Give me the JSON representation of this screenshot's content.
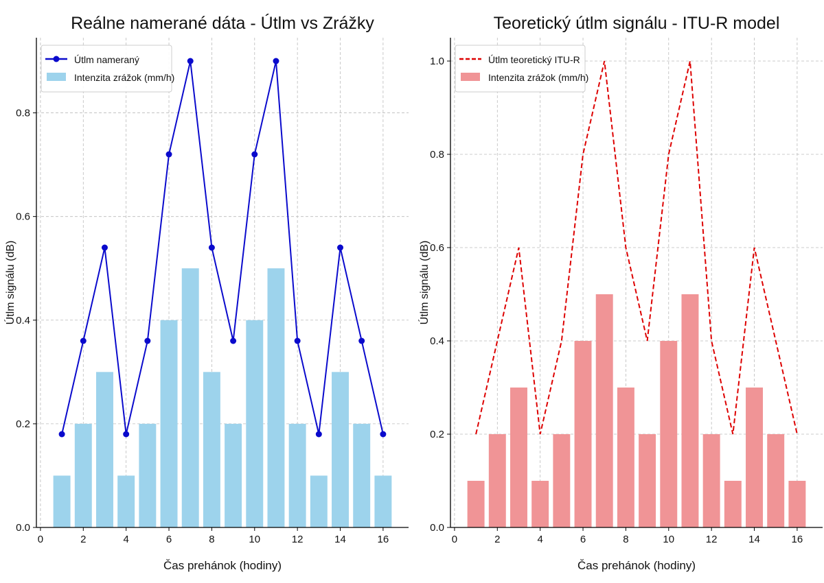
{
  "chart_data": [
    {
      "type": "bar+line",
      "title": "Reálne namerané dáta - Útlm vs Zrážky",
      "xlabel": "Čas prehánok (hodiny)",
      "ylabel": "Útlm signálu (dB)",
      "xlim": [
        -0.19,
        17.19
      ],
      "ylim": [
        0,
        0.945
      ],
      "xticks": [
        0,
        2,
        4,
        6,
        8,
        10,
        12,
        14,
        16
      ],
      "yticks": [
        "0.0",
        "0.2",
        "0.4",
        "0.6",
        "0.8"
      ],
      "grid": true,
      "legend_position": "top-left",
      "x": [
        1,
        2,
        3,
        4,
        5,
        6,
        7,
        8,
        9,
        10,
        11,
        12,
        13,
        14,
        15,
        16
      ],
      "series": [
        {
          "name": "Útlm nameraný",
          "kind": "line-markers",
          "color": "#0a0acc",
          "values": [
            0.18,
            0.36,
            0.54,
            0.18,
            0.36,
            0.72,
            0.9,
            0.54,
            0.36,
            0.72,
            0.9,
            0.36,
            0.18,
            0.54,
            0.36,
            0.18
          ]
        },
        {
          "name": "Intenzita zrážok (mm/h)",
          "kind": "bar",
          "color": "#9dd3ec",
          "values": [
            0.1,
            0.2,
            0.3,
            0.1,
            0.2,
            0.4,
            0.5,
            0.3,
            0.2,
            0.4,
            0.5,
            0.2,
            0.1,
            0.3,
            0.2,
            0.1
          ]
        }
      ]
    },
    {
      "type": "bar+line",
      "title": "Teoretický útlm signálu - ITU-R model",
      "xlabel": "Čas prehánok (hodiny)",
      "ylabel": "Útlm signálu (dB)",
      "xlim": [
        -0.19,
        17.19
      ],
      "ylim": [
        0,
        1.05
      ],
      "xticks": [
        0,
        2,
        4,
        6,
        8,
        10,
        12,
        14,
        16
      ],
      "yticks": [
        "0.0",
        "0.2",
        "0.4",
        "0.6",
        "0.8",
        "1.0"
      ],
      "grid": true,
      "legend_position": "top-left",
      "x": [
        1,
        2,
        3,
        4,
        5,
        6,
        7,
        8,
        9,
        10,
        11,
        12,
        13,
        14,
        15,
        16
      ],
      "series": [
        {
          "name": "Útlm teoretický ITU-R",
          "kind": "dashed-line",
          "color": "#dd0000",
          "values": [
            0.2,
            0.4,
            0.6,
            0.2,
            0.4,
            0.8,
            1.0,
            0.6,
            0.4,
            0.8,
            1.0,
            0.4,
            0.2,
            0.6,
            0.4,
            0.2
          ]
        },
        {
          "name": "Intenzita zrážok (mm/h)",
          "kind": "bar",
          "color": "#f09496",
          "values": [
            0.1,
            0.2,
            0.3,
            0.1,
            0.2,
            0.4,
            0.5,
            0.3,
            0.2,
            0.4,
            0.5,
            0.2,
            0.1,
            0.3,
            0.2,
            0.1
          ]
        }
      ]
    }
  ]
}
